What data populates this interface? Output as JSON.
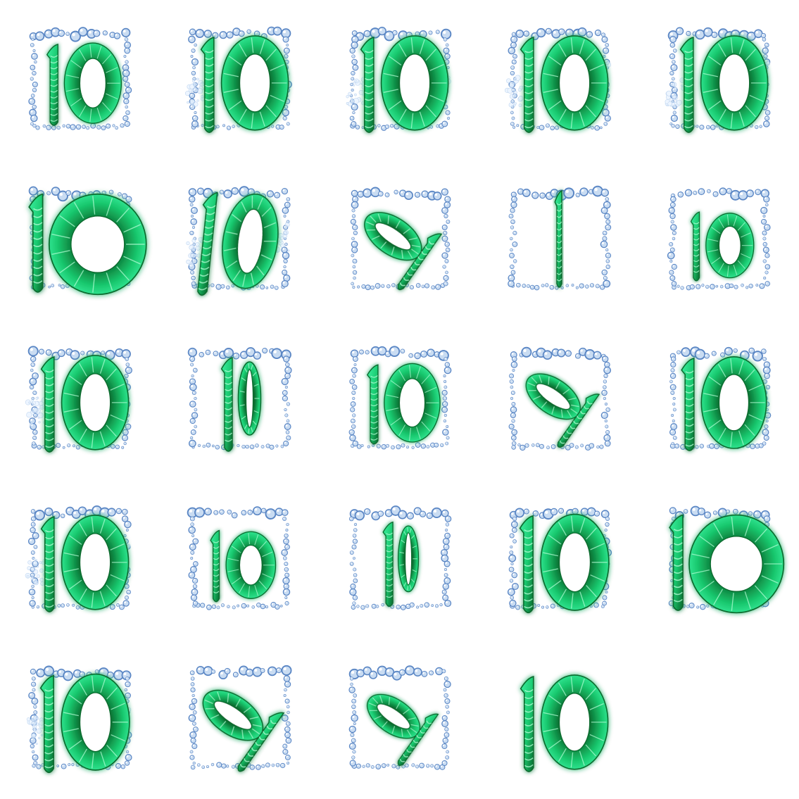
{
  "sprite_sheet": {
    "symbol_text": "10",
    "grid": {
      "columns": 5,
      "rows": 5
    },
    "colors": {
      "glyph_bright": "#3bf0a0",
      "glyph_mid": "#19c86e",
      "glyph_dark": "#0a6a2e",
      "glyph_stripe": "#b8ffd8",
      "glyph_glow": "#2cff96",
      "bubble_fill": "#c9dcf2",
      "bubble_edge": "#5a86c4",
      "bubble_highlight": "#ffffff",
      "background": "#ffffff"
    },
    "frames": [
      {
        "id": 1,
        "variant": "normal",
        "scale": 0.92,
        "border": true,
        "splash": false
      },
      {
        "id": 2,
        "variant": "normal",
        "scale": 1.08,
        "border": true,
        "splash": true
      },
      {
        "id": 3,
        "variant": "normal",
        "scale": 1.08,
        "border": true,
        "splash": true
      },
      {
        "id": 4,
        "variant": "normal",
        "scale": 1.08,
        "border": true,
        "splash": true
      },
      {
        "id": 5,
        "variant": "normal",
        "scale": 1.08,
        "border": true,
        "splash": true
      },
      {
        "id": 6,
        "variant": "wide",
        "scale": 1.15,
        "border": true,
        "splash": false
      },
      {
        "id": 7,
        "variant": "skewed",
        "scale": 1.08,
        "border": true,
        "splash": true
      },
      {
        "id": 8,
        "variant": "percent",
        "scale": 1.0,
        "border": true,
        "splash": false
      },
      {
        "id": 9,
        "variant": "edge",
        "scale": 1.0,
        "border": true,
        "splash": false
      },
      {
        "id": 10,
        "variant": "small",
        "scale": 0.85,
        "border": true,
        "splash": false
      },
      {
        "id": 11,
        "variant": "normal",
        "scale": 1.08,
        "border": true,
        "splash": true
      },
      {
        "id": 12,
        "variant": "narrow",
        "scale": 1.0,
        "border": true,
        "splash": false
      },
      {
        "id": 13,
        "variant": "normal",
        "scale": 0.9,
        "border": true,
        "splash": false
      },
      {
        "id": 14,
        "variant": "percent",
        "scale": 0.95,
        "border": true,
        "splash": false
      },
      {
        "id": 15,
        "variant": "normal",
        "scale": 1.05,
        "border": true,
        "splash": false
      },
      {
        "id": 16,
        "variant": "normal",
        "scale": 1.08,
        "border": true,
        "splash": true
      },
      {
        "id": 17,
        "variant": "small",
        "scale": 0.88,
        "border": true,
        "splash": false
      },
      {
        "id": 18,
        "variant": "narrow",
        "scale": 0.9,
        "border": true,
        "splash": false
      },
      {
        "id": 19,
        "variant": "normal",
        "scale": 1.1,
        "border": true,
        "splash": false
      },
      {
        "id": 20,
        "variant": "wide",
        "scale": 1.12,
        "border": true,
        "splash": false
      },
      {
        "id": 21,
        "variant": "normal",
        "scale": 1.1,
        "border": true,
        "splash": true
      },
      {
        "id": 22,
        "variant": "percent",
        "scale": 1.05,
        "border": true,
        "splash": false
      },
      {
        "id": 23,
        "variant": "percent",
        "scale": 0.92,
        "border": true,
        "splash": false
      },
      {
        "id": 24,
        "variant": "normal",
        "scale": 1.08,
        "border": false,
        "splash": false
      }
    ]
  }
}
